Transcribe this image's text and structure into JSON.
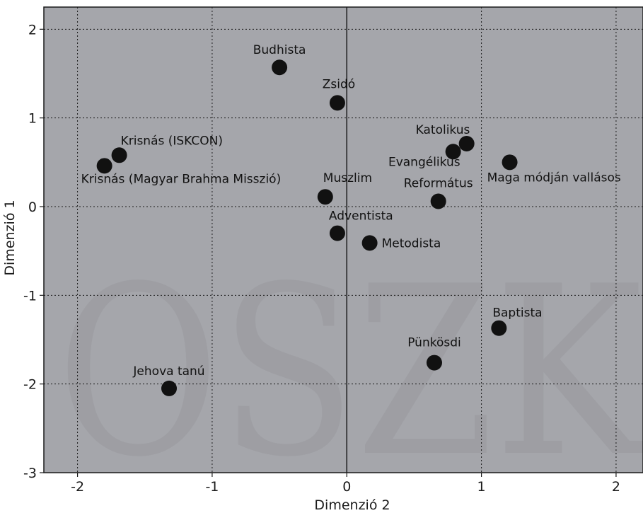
{
  "chart_data": {
    "type": "scatter",
    "title": "",
    "xlabel": "Dimenzió 2",
    "ylabel": "Dimenzió 1",
    "xlim": [
      -2.25,
      2.2
    ],
    "ylim": [
      -3,
      2.25
    ],
    "xticks": [
      -2,
      -1,
      0,
      1,
      2
    ],
    "yticks": [
      2,
      1,
      0,
      -1,
      -2,
      -3
    ],
    "xtick_labels": [
      "-2",
      "-1",
      "0",
      "1",
      "2"
    ],
    "ytick_labels": [
      "2",
      "1",
      "0",
      "-1",
      "-2",
      "-3"
    ],
    "grid": true,
    "background_color": "#a5a6ab",
    "point_color": "#111111",
    "watermark": "OSZK",
    "points": [
      {
        "label": "Budhista",
        "x": -0.5,
        "y": 1.57
      },
      {
        "label": "Zsidó",
        "x": -0.07,
        "y": 1.17
      },
      {
        "label": "Krisnás (ISKCON)",
        "x": -1.69,
        "y": 0.58
      },
      {
        "label": "Krisnás (Magyar Brahma Misszió)",
        "x": -1.8,
        "y": 0.46
      },
      {
        "label": "Katolikus",
        "x": 0.89,
        "y": 0.71
      },
      {
        "label": "Evangélikus",
        "x": 0.79,
        "y": 0.62
      },
      {
        "label": "Maga módján vallásos",
        "x": 1.21,
        "y": 0.5
      },
      {
        "label": "Muszlim",
        "x": -0.16,
        "y": 0.11
      },
      {
        "label": "Református",
        "x": 0.68,
        "y": 0.06
      },
      {
        "label": "Adventista",
        "x": -0.07,
        "y": -0.3
      },
      {
        "label": "Metodista",
        "x": 0.17,
        "y": -0.41
      },
      {
        "label": "Baptista",
        "x": 1.13,
        "y": -1.37
      },
      {
        "label": "Pünkösdi",
        "x": 0.65,
        "y": -1.76
      },
      {
        "label": "Jehova tanú",
        "x": -1.32,
        "y": -2.05
      }
    ]
  }
}
